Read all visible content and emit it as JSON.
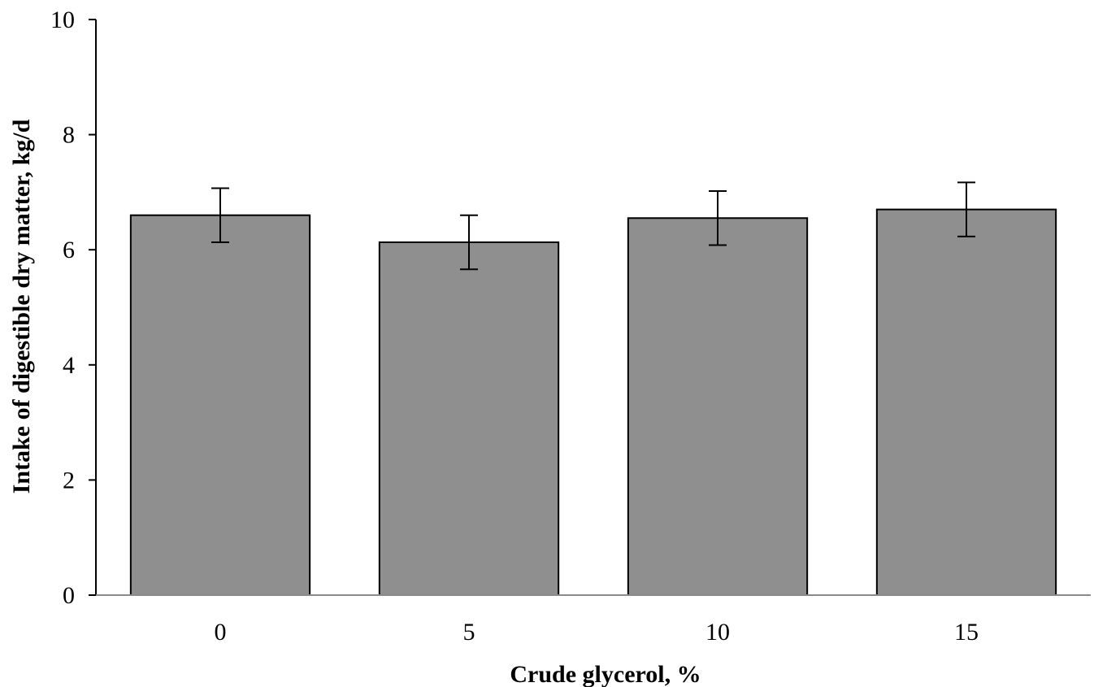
{
  "chart_data": {
    "type": "bar",
    "title": "",
    "xlabel": "Crude glycerol, %",
    "ylabel": "Intake of digestible dry matter, kg/d",
    "categories": [
      "0",
      "5",
      "10",
      "15"
    ],
    "series": [
      {
        "values": [
          6.6,
          6.13,
          6.55,
          6.7
        ],
        "error": [
          0.47,
          0.47,
          0.47,
          0.47
        ]
      }
    ],
    "ylim": [
      0,
      10
    ],
    "yticks": [
      "0",
      "2",
      "4",
      "6",
      "8",
      "10"
    ],
    "grid": false,
    "legend": "none",
    "colors": {
      "bar_fill": "#8f8f8f",
      "bar_stroke": "#000000",
      "axis": "#8a8a8a"
    }
  }
}
